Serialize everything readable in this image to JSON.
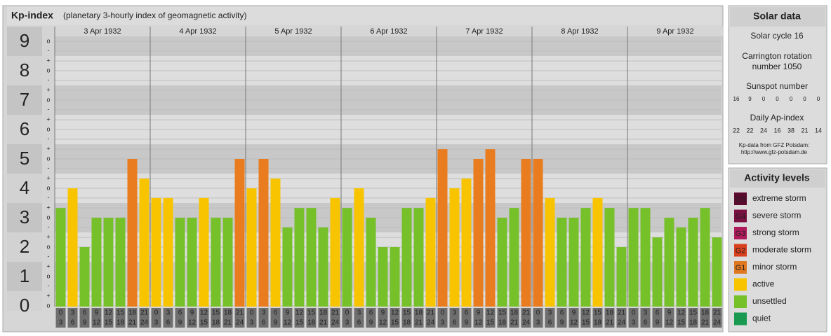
{
  "chart_data": {
    "type": "bar",
    "title": "Kp-index",
    "subtitle": "(planetary 3-hourly index of geomagnetic activity)",
    "ylim": [
      0,
      9
    ],
    "yticks": [
      0,
      1,
      2,
      3,
      4,
      5,
      6,
      7,
      8,
      9
    ],
    "yminorticks": [
      {
        "value": 0,
        "label": "o"
      },
      {
        "value": 0.33,
        "label": "+"
      },
      {
        "value": 0.67,
        "label": "-"
      },
      {
        "value": 1,
        "label": "o"
      },
      {
        "value": 1.33,
        "label": "+"
      },
      {
        "value": 1.67,
        "label": "-"
      },
      {
        "value": 2,
        "label": "o"
      },
      {
        "value": 2.33,
        "label": "+"
      },
      {
        "value": 2.67,
        "label": "-"
      },
      {
        "value": 3,
        "label": "o"
      },
      {
        "value": 3.33,
        "label": "+"
      },
      {
        "value": 3.67,
        "label": "-"
      },
      {
        "value": 4,
        "label": "o"
      },
      {
        "value": 4.33,
        "label": "+"
      },
      {
        "value": 4.67,
        "label": "-"
      },
      {
        "value": 5,
        "label": "o"
      },
      {
        "value": 5.33,
        "label": "+"
      },
      {
        "value": 5.67,
        "label": "-"
      },
      {
        "value": 6,
        "label": "o"
      },
      {
        "value": 6.33,
        "label": "+"
      },
      {
        "value": 6.67,
        "label": "-"
      },
      {
        "value": 7,
        "label": "o"
      },
      {
        "value": 7.33,
        "label": "+"
      },
      {
        "value": 7.67,
        "label": "-"
      },
      {
        "value": 8,
        "label": "o"
      },
      {
        "value": 8.33,
        "label": "+"
      },
      {
        "value": 8.67,
        "label": "-"
      },
      {
        "value": 9,
        "label": "o"
      }
    ],
    "hour_edges": [
      0,
      3,
      6,
      9,
      12,
      15,
      18,
      21,
      24
    ],
    "grid": true,
    "series": [
      {
        "name": "3 Apr 1932",
        "values": [
          3.33,
          4,
          2,
          3,
          3,
          3,
          5,
          4.33
        ],
        "colors": [
          "#76c02a",
          "#f8c400",
          "#76c02a",
          "#76c02a",
          "#76c02a",
          "#76c02a",
          "#e87c1e",
          "#f8c400"
        ]
      },
      {
        "name": "4 Apr 1932",
        "values": [
          3.67,
          3.67,
          3,
          3,
          3.67,
          3,
          3,
          5
        ],
        "colors": [
          "#f8c400",
          "#f8c400",
          "#76c02a",
          "#76c02a",
          "#f8c400",
          "#76c02a",
          "#76c02a",
          "#e87c1e"
        ]
      },
      {
        "name": "5 Apr 1932",
        "values": [
          4,
          5,
          4.33,
          2.67,
          3.33,
          3.33,
          2.67,
          3.67
        ],
        "colors": [
          "#f8c400",
          "#e87c1e",
          "#f8c400",
          "#76c02a",
          "#76c02a",
          "#76c02a",
          "#76c02a",
          "#f8c400"
        ]
      },
      {
        "name": "6 Apr 1932",
        "values": [
          3.33,
          4,
          3,
          2,
          2,
          3.33,
          3.33,
          3.67
        ],
        "colors": [
          "#76c02a",
          "#f8c400",
          "#76c02a",
          "#76c02a",
          "#76c02a",
          "#76c02a",
          "#76c02a",
          "#f8c400"
        ]
      },
      {
        "name": "7 Apr 1932",
        "values": [
          5.33,
          4,
          4.33,
          5,
          5.33,
          3,
          3.33,
          5
        ],
        "colors": [
          "#e87c1e",
          "#f8c400",
          "#f8c400",
          "#e87c1e",
          "#e87c1e",
          "#76c02a",
          "#76c02a",
          "#e87c1e"
        ]
      },
      {
        "name": "8 Apr 1932",
        "values": [
          5,
          3.67,
          3,
          3,
          3.33,
          3.67,
          3.33,
          2
        ],
        "colors": [
          "#e87c1e",
          "#f8c400",
          "#76c02a",
          "#76c02a",
          "#76c02a",
          "#f8c400",
          "#76c02a",
          "#76c02a"
        ]
      },
      {
        "name": "9 Apr 1932",
        "values": [
          3.33,
          3.33,
          2.33,
          3,
          2.67,
          3,
          3.33,
          2.33
        ],
        "colors": [
          "#76c02a",
          "#76c02a",
          "#76c02a",
          "#76c02a",
          "#76c02a",
          "#76c02a",
          "#76c02a",
          "#76c02a"
        ]
      }
    ]
  },
  "solar": {
    "title": "Solar data",
    "cycle": "Solar cycle 16",
    "carrington": [
      "Carrington rotation",
      "number 1050"
    ],
    "sunspot_title": "Sunspot number",
    "sunspot": [
      16,
      9,
      0,
      0,
      0,
      0,
      0
    ],
    "ap_title": "Daily Ap-index",
    "ap": [
      22,
      22,
      24,
      16,
      38,
      21,
      14
    ],
    "source": [
      "Kp-data from GFZ Potsdam:",
      "http://www.gfz-potsdam.de"
    ]
  },
  "activity": {
    "title": "Activity levels",
    "levels": [
      {
        "code": "G5",
        "label": "extreme storm",
        "color": "#5b0a2e"
      },
      {
        "code": "G4",
        "label": "severe storm",
        "color": "#7a1040"
      },
      {
        "code": "G3",
        "label": "strong storm",
        "color": "#b01a5a"
      },
      {
        "code": "G2",
        "label": "moderate storm",
        "color": "#d8401e"
      },
      {
        "code": "G1",
        "label": "minor storm",
        "color": "#e07820"
      },
      {
        "code": null,
        "label": "active",
        "color": "#f8c400"
      },
      {
        "code": null,
        "label": "unsettled",
        "color": "#76c02a"
      },
      {
        "code": null,
        "label": "quiet",
        "color": "#1a9a50"
      }
    ]
  }
}
